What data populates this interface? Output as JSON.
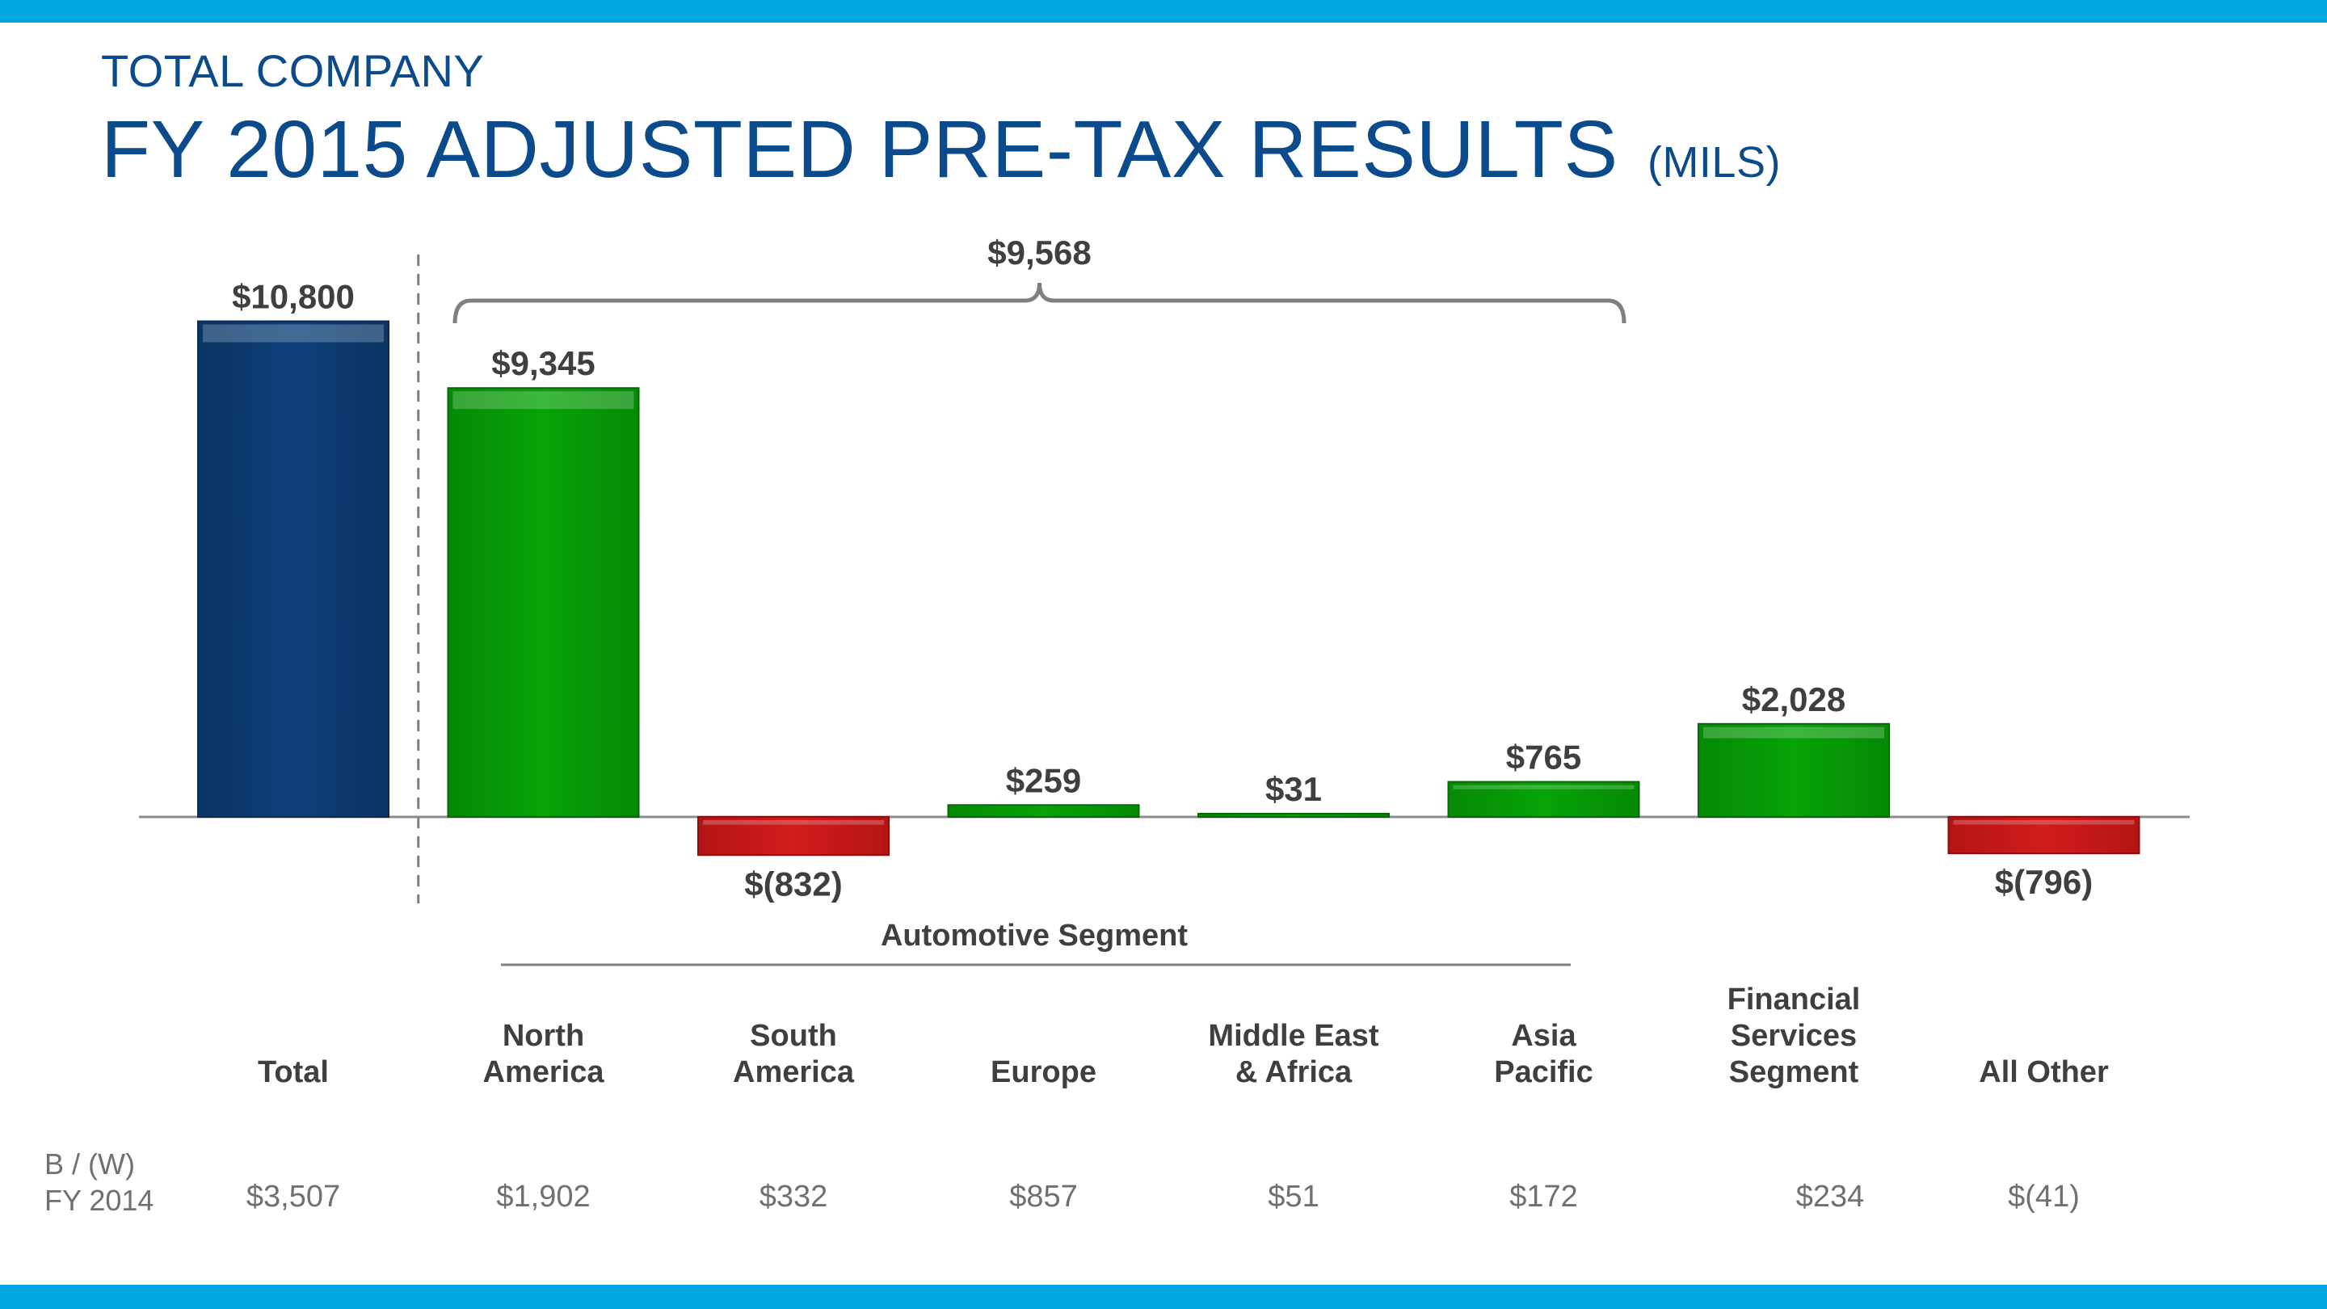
{
  "header": {
    "kicker": "TOTAL COMPANY",
    "title": "FY 2015 ADJUSTED PRE-TAX RESULTS",
    "unit": "(MILS)"
  },
  "colors": {
    "band": "#00a6e1",
    "title": "#0b4a8b",
    "total_bar": "#0d3f7a",
    "positive_bar": "#06a306",
    "negative_bar": "#d01c1c"
  },
  "chart_data": {
    "type": "bar",
    "categories": [
      "Total",
      "North America",
      "South America",
      "Europe",
      "Middle East & Africa",
      "Asia Pacific",
      "Financial Services Segment",
      "All Other"
    ],
    "values": [
      10800,
      9345,
      -832,
      259,
      31,
      765,
      2028,
      -796
    ],
    "value_labels": [
      "$10,800",
      "$9,345",
      "$(832)",
      "$259",
      "$31",
      "$765",
      "$2,028",
      "$(796)"
    ],
    "bar_kinds": [
      "total",
      "segment",
      "segment",
      "segment",
      "segment",
      "segment",
      "segment",
      "segment"
    ],
    "bracket": {
      "label": "$9,568",
      "from_category": "North America",
      "to_category": "Asia Pacific",
      "value": 9568
    },
    "grouping": {
      "label": "Automotive Segment",
      "from_category": "North America",
      "to_category": "Asia Pacific"
    },
    "title": "FY 2015 ADJUSTED PRE-TAX RESULTS",
    "xlabel": "",
    "ylabel": "",
    "ylim": [
      -1000,
      11000
    ],
    "grid": false
  },
  "category_labels": [
    "Total",
    "North\nAmerica",
    "South\nAmerica",
    "Europe",
    "Middle East\n& Africa",
    "Asia\nPacific",
    "Financial\nServices\nSegment",
    "All Other"
  ],
  "comparison": {
    "row_label": "B / (W)\nFY 2014",
    "values": [
      "$3,507",
      "$1,902",
      "$332",
      "$857",
      "$51",
      "$172",
      "$234",
      "$(41)"
    ]
  }
}
